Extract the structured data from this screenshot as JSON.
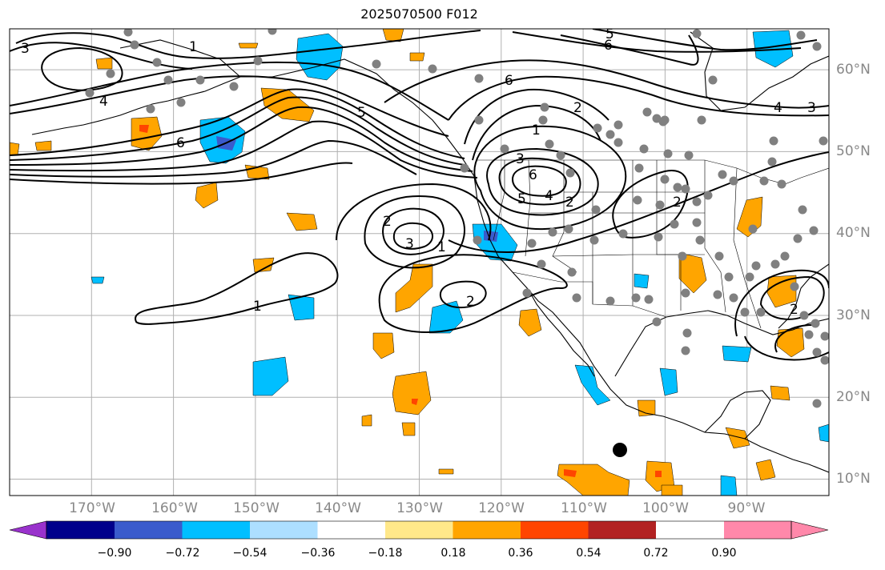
{
  "title": "2025070500 F012",
  "map": {
    "projection": "cylindrical",
    "lon_range": [
      -180,
      -80
    ],
    "lat_range": [
      8,
      65
    ],
    "lon_labels": [
      "170°W",
      "160°W",
      "150°W",
      "140°W",
      "130°W",
      "120°W",
      "110°W",
      "100°W",
      "90°W"
    ],
    "lat_labels": [
      "60°N",
      "50°N",
      "40°N",
      "30°N",
      "20°N",
      "10°N"
    ],
    "gridline_color": "#b0b0b0",
    "contour_labels": [
      "3",
      "1",
      "4",
      "6",
      "5",
      "2",
      "6",
      "2",
      "1",
      "3",
      "5",
      "6",
      "4",
      "2",
      "2",
      "1",
      "3",
      "2",
      "1",
      "2",
      "4",
      "3",
      "6",
      "5"
    ],
    "marker_color": "#808080",
    "highlight_marker_color": "#000000"
  },
  "colorbar": {
    "ticks": [
      "−0.90",
      "−0.72",
      "−0.54",
      "−0.36",
      "−0.18",
      "0.18",
      "0.36",
      "0.54",
      "0.72",
      "0.90"
    ],
    "colors": [
      "#9932CC",
      "#00008B",
      "#3A5BCC",
      "#00BFFF",
      "#ADDFFF",
      "#FFFFFF",
      "#FFE88A",
      "#FFA500",
      "#FF4500",
      "#B22222",
      "#FF88AA"
    ]
  }
}
